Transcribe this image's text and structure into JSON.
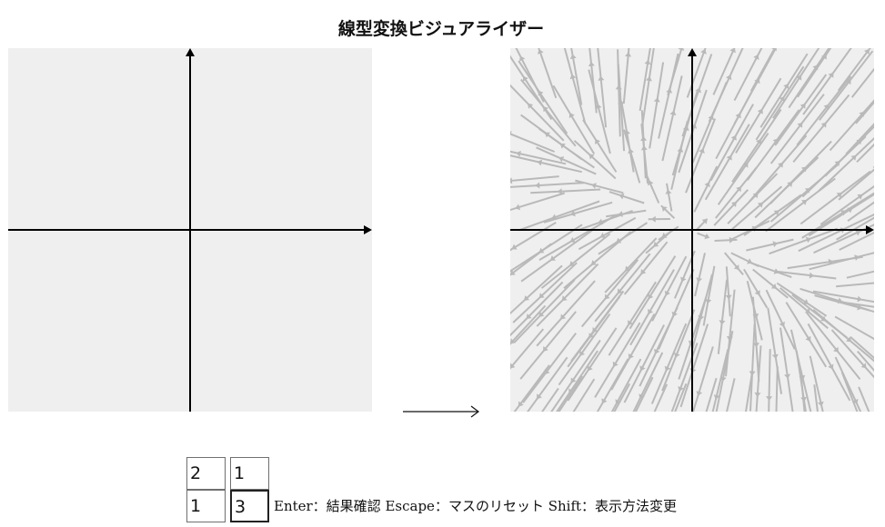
{
  "title": "線型変換ビジュアライザー",
  "matrix": {
    "a": "2",
    "b": "1",
    "c": "1",
    "d": "3"
  },
  "help": {
    "enter": "Enter：結果確認",
    "escape": "Escape：マスのリセット",
    "shift": "Shift：表示方法変更"
  },
  "colors": {
    "panel_background": "#efefef",
    "axis": "#000000",
    "field_lines": "#b9b9b9"
  },
  "icons": {
    "transform_arrow": "right-arrow-icon"
  }
}
